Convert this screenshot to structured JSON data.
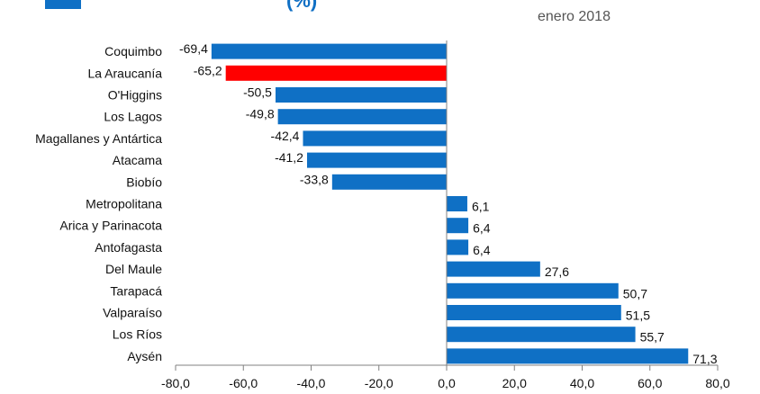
{
  "header": {
    "title_fragment": "(%)",
    "period": "enero 2018"
  },
  "colors": {
    "bar": "#0f70c5",
    "highlight": "#ff0000",
    "axis": "#808080"
  },
  "chart_data": {
    "type": "bar",
    "orientation": "horizontal",
    "title": "",
    "xlabel": "",
    "ylabel": "",
    "categories": [
      "Coquimbo",
      "La Araucanía",
      "O'Higgins",
      "Los Lagos",
      "Magallanes y Antártica",
      "Atacama",
      "Biobío",
      "Metropolitana",
      "Arica y Parinacota",
      "Antofagasta",
      "Del Maule",
      "Tarapacá",
      "Valparaíso",
      "Los Ríos",
      "Aysén"
    ],
    "values": [
      -69.4,
      -65.2,
      -50.5,
      -49.8,
      -42.4,
      -41.2,
      -33.8,
      6.1,
      6.4,
      6.4,
      27.6,
      50.7,
      51.5,
      55.7,
      71.3
    ],
    "value_labels": [
      "-69,4",
      "-65,2",
      "-50,5",
      "-49,8",
      "-42,4",
      "-41,2",
      "-33,8",
      "6,1",
      "6,4",
      "6,4",
      "27,6",
      "50,7",
      "51,5",
      "55,7",
      "71,3"
    ],
    "highlight_category": "La Araucanía",
    "xlim": [
      -80,
      80
    ],
    "x_ticks": [
      -80,
      -60,
      -40,
      -20,
      0,
      20,
      40,
      60,
      80
    ],
    "x_tick_labels": [
      "-80,0",
      "-60,0",
      "-40,0",
      "-20,0",
      "0,0",
      "20,0",
      "40,0",
      "60,0",
      "80,0"
    ],
    "grid": false,
    "legend": "top-left"
  }
}
